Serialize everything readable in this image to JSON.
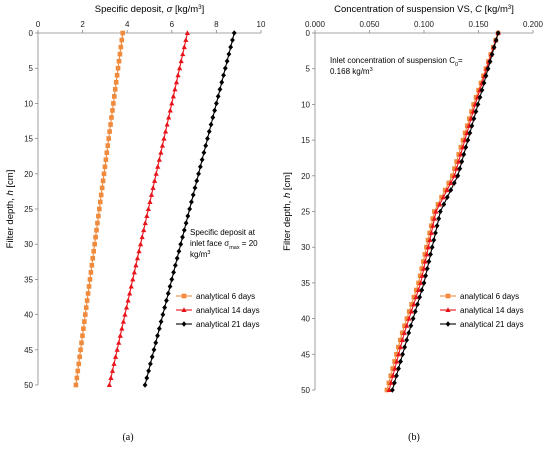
{
  "colors": {
    "6_days": "#f08a3c",
    "14_days": "#e8141c",
    "21_days": "#000000",
    "axis": "#888888"
  },
  "chart_data": [
    {
      "panel_label": "(a)",
      "type": "line",
      "xlabel_prefix": "Specific deposit, ",
      "xlabel_symbol": "σ",
      "xlabel_unit": " [kg/m",
      "xlabel_sup": "3",
      "xlabel_close": "]",
      "ylabel_prefix": "Filter depth, ",
      "ylabel_symbol": "h",
      "ylabel_unit": " [cm]",
      "xlim": [
        0,
        10
      ],
      "ylim": [
        0,
        50
      ],
      "x_axis_position": "top",
      "y_inverted": true,
      "xticks": [
        "0",
        "2",
        "4",
        "6",
        "8",
        "10"
      ],
      "yticks": [
        "0",
        "5",
        "10",
        "15",
        "20",
        "25",
        "30",
        "35",
        "40",
        "45",
        "50"
      ],
      "annotation": {
        "line1": "Specific deposit at",
        "line2a": "inlet face σ",
        "line2sub": "max",
        "line2b": " = 20",
        "line3a": "kg/m",
        "line3sup": "3"
      },
      "legend_position": "bottom-right",
      "series": [
        {
          "name": "analytical 6 days",
          "marker": "square",
          "color_key": "6_days",
          "points": [
            [
              3.8,
              0
            ],
            [
              1.7,
              50
            ]
          ]
        },
        {
          "name": "analytical 14 days",
          "marker": "triangle",
          "color_key": "14_days",
          "points": [
            [
              6.7,
              0
            ],
            [
              3.2,
              50
            ]
          ]
        },
        {
          "name": "analytical 21 days",
          "marker": "diamond",
          "color_key": "21_days",
          "points": [
            [
              8.8,
              0
            ],
            [
              4.8,
              50
            ]
          ]
        }
      ]
    },
    {
      "panel_label": "(b)",
      "type": "line",
      "xlabel_prefix": "Concentration of suspension VS, ",
      "xlabel_symbol": "C",
      "xlabel_unit": " [kg/m",
      "xlabel_sup": "3",
      "xlabel_close": "]",
      "ylabel_prefix": "Filter depth, ",
      "ylabel_symbol": "h",
      "ylabel_unit": " [cm]",
      "xlim": [
        0,
        0.2
      ],
      "ylim": [
        0,
        50
      ],
      "x_axis_position": "top",
      "y_inverted": true,
      "xticks": [
        "0.000",
        "0.050",
        "0.100",
        "0.150",
        "0.200"
      ],
      "yticks": [
        "0",
        "5",
        "10",
        "15",
        "20",
        "25",
        "30",
        "35",
        "40",
        "45",
        "50"
      ],
      "annotation": {
        "line1a": "Inlet concentration of suspension C",
        "line1sub": "0",
        "line1b": "=",
        "line2": "0.168 kg/m",
        "line2sup": "3"
      },
      "legend_position": "bottom-right",
      "series": [
        {
          "name": "analytical 6 days",
          "marker": "square",
          "color_key": "6_days",
          "points": [
            [
              0.168,
              0
            ],
            [
              0.1455,
              10
            ],
            [
              0.126,
              20
            ],
            [
              0.1095,
              25
            ],
            [
              0.095,
              35
            ],
            [
              0.08,
              42
            ],
            [
              0.066,
              50
            ]
          ]
        },
        {
          "name": "analytical 14 days",
          "marker": "triangle",
          "color_key": "14_days",
          "points": [
            [
              0.168,
              0
            ],
            [
              0.147,
              10
            ],
            [
              0.128,
              20
            ],
            [
              0.111,
              25
            ],
            [
              0.097,
              35
            ],
            [
              0.082,
              42
            ],
            [
              0.068,
              50
            ]
          ]
        },
        {
          "name": "analytical 21 days",
          "marker": "diamond",
          "color_key": "21_days",
          "points": [
            [
              0.168,
              0
            ],
            [
              0.1495,
              10
            ],
            [
              0.131,
              20
            ],
            [
              0.115,
              25
            ],
            [
              0.1,
              35
            ],
            [
              0.086,
              42
            ],
            [
              0.071,
              50
            ]
          ]
        }
      ]
    }
  ]
}
